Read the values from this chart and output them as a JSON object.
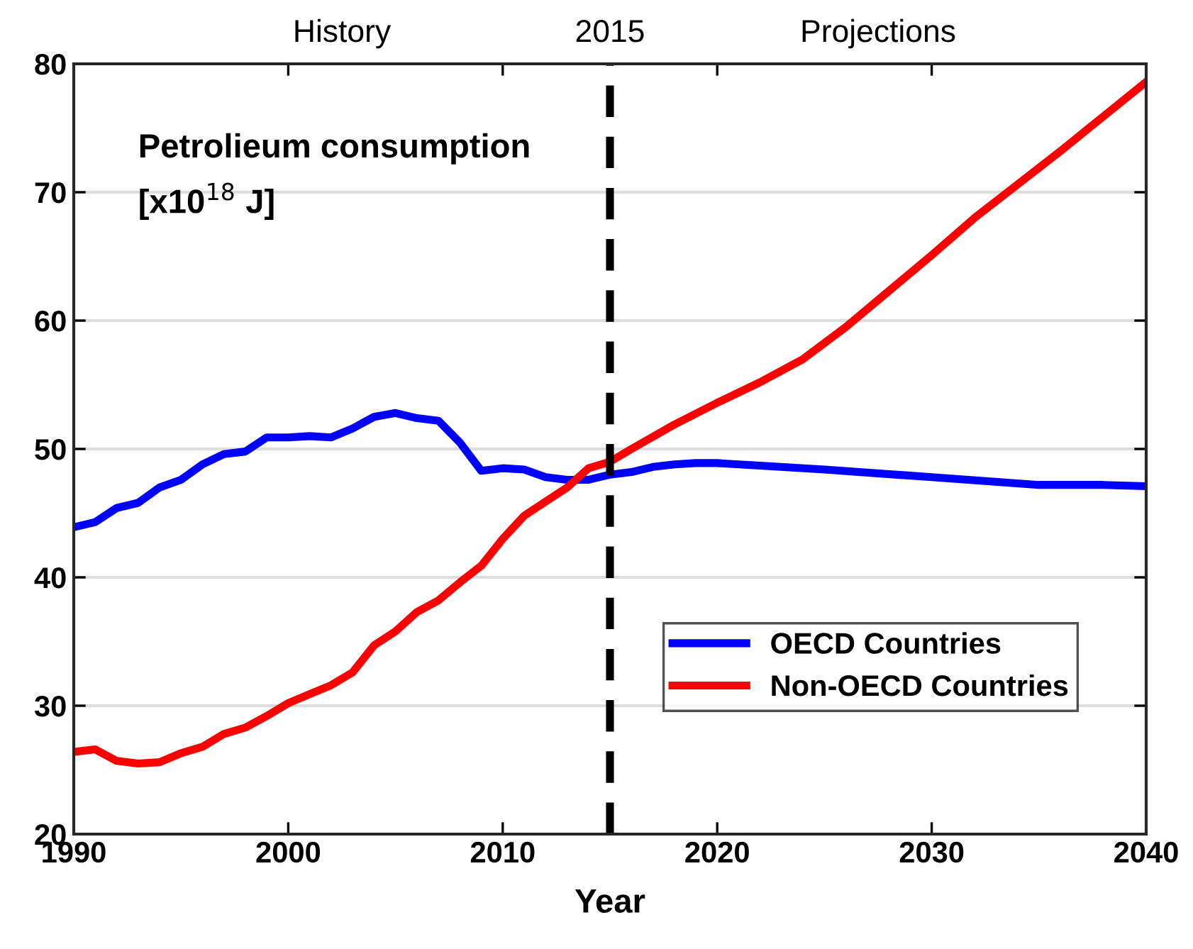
{
  "chart_data": {
    "type": "line",
    "xlabel": "Year",
    "annotations": [
      "History",
      "Projections",
      "Petrolieum consumption\n[x10$^{18}$ J]"
    ],
    "xlim": [
      1990,
      2040
    ],
    "xticks": [
      1990,
      2000,
      2010,
      2020,
      2030,
      2040
    ],
    "ylim": [
      20,
      80
    ],
    "yticks": [
      20,
      30,
      40,
      50,
      60,
      70,
      80
    ],
    "grid": "y",
    "legend": "bottom right",
    "line_style": "solid",
    "ref_lines": [
      {
        "axis": "x",
        "value": 2015,
        "label": "2015",
        "color": "#000000",
        "line_style": "dashed"
      }
    ],
    "series": [
      {
        "name": "OECD Countries",
        "color": "#0000ff",
        "x": [
          1990,
          1991,
          1992,
          1993,
          1994,
          1995,
          1996,
          1997,
          1998,
          1999,
          2000,
          2001,
          2002,
          2003,
          2004,
          2005,
          2006,
          2007,
          2008,
          2009,
          2010,
          2011,
          2012,
          2013,
          2014,
          2015,
          2016,
          2017,
          2018,
          2019,
          2020,
          2022,
          2025,
          2030,
          2035,
          2038,
          2040
        ],
        "values": [
          43.9,
          44.3,
          45.4,
          45.8,
          47.0,
          47.6,
          48.8,
          49.6,
          49.8,
          50.9,
          50.9,
          51.0,
          50.9,
          51.6,
          52.5,
          52.8,
          52.4,
          52.2,
          50.5,
          48.3,
          48.5,
          48.4,
          47.8,
          47.6,
          47.6,
          48.0,
          48.2,
          48.6,
          48.8,
          48.9,
          48.9,
          48.7,
          48.4,
          47.8,
          47.2,
          47.2,
          47.1
        ]
      },
      {
        "name": "Non-OECD Countries",
        "color": "#ff0000",
        "x": [
          1990,
          1991,
          1992,
          1993,
          1994,
          1995,
          1996,
          1997,
          1998,
          1999,
          2000,
          2001,
          2002,
          2003,
          2004,
          2005,
          2006,
          2007,
          2008,
          2009,
          2010,
          2011,
          2012,
          2013,
          2014,
          2015,
          2016,
          2018,
          2020,
          2022,
          2024,
          2026,
          2028,
          2030,
          2032,
          2034,
          2036,
          2038,
          2040
        ],
        "values": [
          26.4,
          26.6,
          25.7,
          25.5,
          25.6,
          26.3,
          26.8,
          27.8,
          28.3,
          29.2,
          30.2,
          30.9,
          31.6,
          32.6,
          34.7,
          35.8,
          37.3,
          38.2,
          39.6,
          40.9,
          43.0,
          44.8,
          45.9,
          47.0,
          48.5,
          49.0,
          50.0,
          51.9,
          53.6,
          55.2,
          57.0,
          59.5,
          62.3,
          65.1,
          68.0,
          70.6,
          73.2,
          75.9,
          78.6
        ]
      }
    ]
  }
}
